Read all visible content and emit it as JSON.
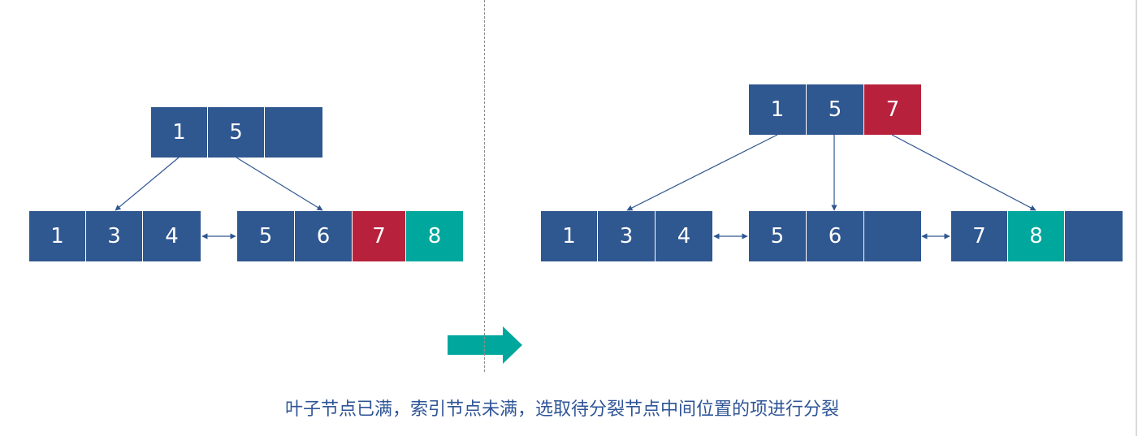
{
  "colors": {
    "node_blue": "#2f5790",
    "promoted_red": "#b8213b",
    "inserted_teal": "#00a79d",
    "connector": "#2f5790",
    "caption": "#2f5597"
  },
  "before": {
    "internal_node": [
      "1",
      "5",
      ""
    ],
    "leaf_left": [
      "1",
      "3",
      "4"
    ],
    "leaf_right": [
      "5",
      "6",
      "7",
      "8"
    ]
  },
  "after": {
    "internal_node": [
      "1",
      "5",
      "7"
    ],
    "leaf_1": [
      "1",
      "3",
      "4"
    ],
    "leaf_2": [
      "5",
      "6",
      ""
    ],
    "leaf_3": [
      "7",
      "8",
      ""
    ]
  },
  "caption": "叶子节点已满，索引节点未满，选取待分裂节点中间位置的项进行分裂"
}
